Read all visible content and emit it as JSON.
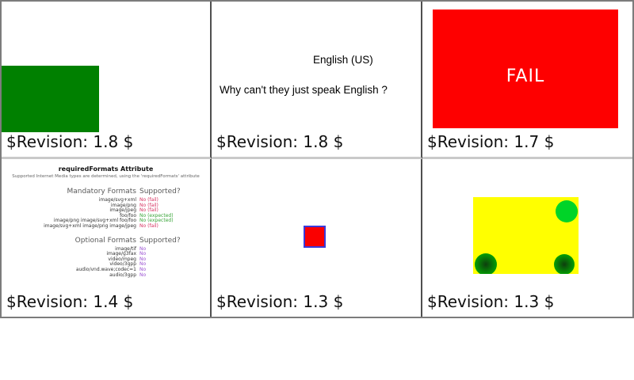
{
  "colors": {
    "green_rect": "#008000",
    "red_rect": "#fe0000",
    "fail_text": "#ffffff",
    "square_fill": "#fa0000",
    "square_border": "#3a3ada",
    "yellow_rect": "#ffff00",
    "flat_circle_green": "#00d428",
    "status_fail": "#d6305f",
    "status_expected": "#3aa53a",
    "status_no": "#9a50d2"
  },
  "grid": {
    "cells": [
      {
        "id": "green-rect-test",
        "revision": "$Revision: 1.8 $"
      },
      {
        "id": "language-test",
        "revision": "$Revision: 1.8 $",
        "labels": {
          "language": "English (US)",
          "question": "Why can't they just speak English ?"
        }
      },
      {
        "id": "fail-test",
        "revision": "$Revision: 1.7 $",
        "labels": {
          "fail": "FAIL"
        }
      },
      {
        "id": "required-formats-test",
        "revision": "$Revision: 1.4 $",
        "title": "requiredFormats Attribute",
        "subtitle": "Supported Internet Media types are determined, using the 'requiredFormats' attribute",
        "formats": {
          "mandatory": {
            "header_label": "Mandatory Formats",
            "header_value": "Supported?",
            "rows": [
              {
                "format": "image/svg+xml",
                "status": "No (fail)",
                "color": "#d6305f"
              },
              {
                "format": "image/png",
                "status": "No (fail)",
                "color": "#d6305f"
              },
              {
                "format": "image/jpeg",
                "status": "No (fail)",
                "color": "#d6305f"
              },
              {
                "format": "foo/foo",
                "status": "No (expected)",
                "color": "#3aa53a"
              },
              {
                "format": "image/png image/svg+xml foo/foo",
                "status": "No (expected)",
                "color": "#3aa53a"
              },
              {
                "format": "image/svg+xml image/png image/jpeg",
                "status": "No (fail)",
                "color": "#d6305f"
              }
            ]
          },
          "optional": {
            "header_label": "Optional Formats",
            "header_value": "Supported?",
            "rows": [
              {
                "format": "image/tif",
                "status": "No",
                "color": "#9a50d2"
              },
              {
                "format": "image/g3fax",
                "status": "No",
                "color": "#9a50d2"
              },
              {
                "format": "video/mpeg",
                "status": "No",
                "color": "#9a50d2"
              },
              {
                "format": "video/3gpp",
                "status": "No",
                "color": "#9a50d2"
              },
              {
                "format": "audio/vnd.wave;codec=1",
                "status": "No",
                "color": "#9a50d2"
              },
              {
                "format": "audio/3gpp",
                "status": "No",
                "color": "#9a50d2"
              }
            ]
          }
        }
      },
      {
        "id": "square-test",
        "revision": "$Revision: 1.3 $"
      },
      {
        "id": "gradient-circles-test",
        "revision": "$Revision: 1.3 $"
      }
    ]
  }
}
